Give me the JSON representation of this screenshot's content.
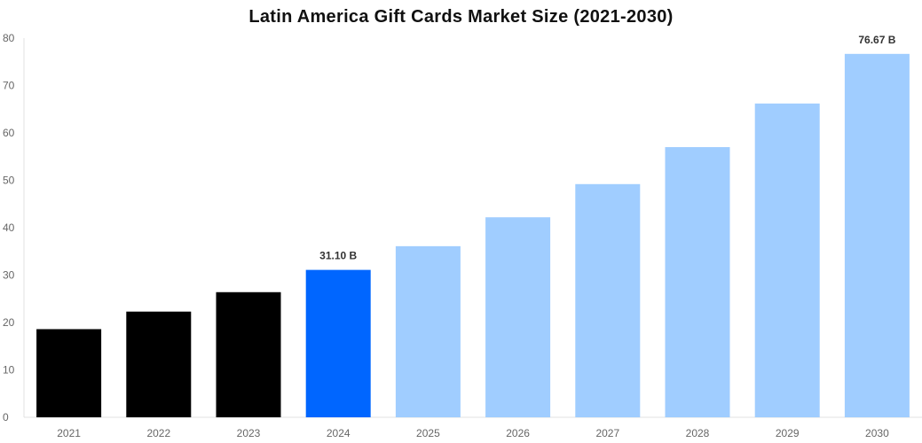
{
  "chart_data": {
    "type": "bar",
    "title": "Latin America Gift Cards Market Size (2021-2030)",
    "xlabel": "",
    "ylabel": "",
    "categories": [
      "2021",
      "2022",
      "2023",
      "2024",
      "2025",
      "2026",
      "2027",
      "2028",
      "2029",
      "2030"
    ],
    "values": [
      18.6,
      22.3,
      26.4,
      31.1,
      36.1,
      42.2,
      49.2,
      57.0,
      66.2,
      76.67
    ],
    "data_labels": {
      "3": "31.10 B",
      "9": "76.67 B"
    },
    "ylim": [
      0,
      80
    ],
    "yticks": [
      0,
      10,
      20,
      30,
      40,
      50,
      60,
      70,
      80
    ],
    "grid": false,
    "legend": "none",
    "colors": {
      "historical": "#000000",
      "current": "#0066ff",
      "forecast": "#a0cdff"
    },
    "bar_color_groups": [
      "historical",
      "historical",
      "historical",
      "current",
      "forecast",
      "forecast",
      "forecast",
      "forecast",
      "forecast",
      "forecast"
    ]
  }
}
